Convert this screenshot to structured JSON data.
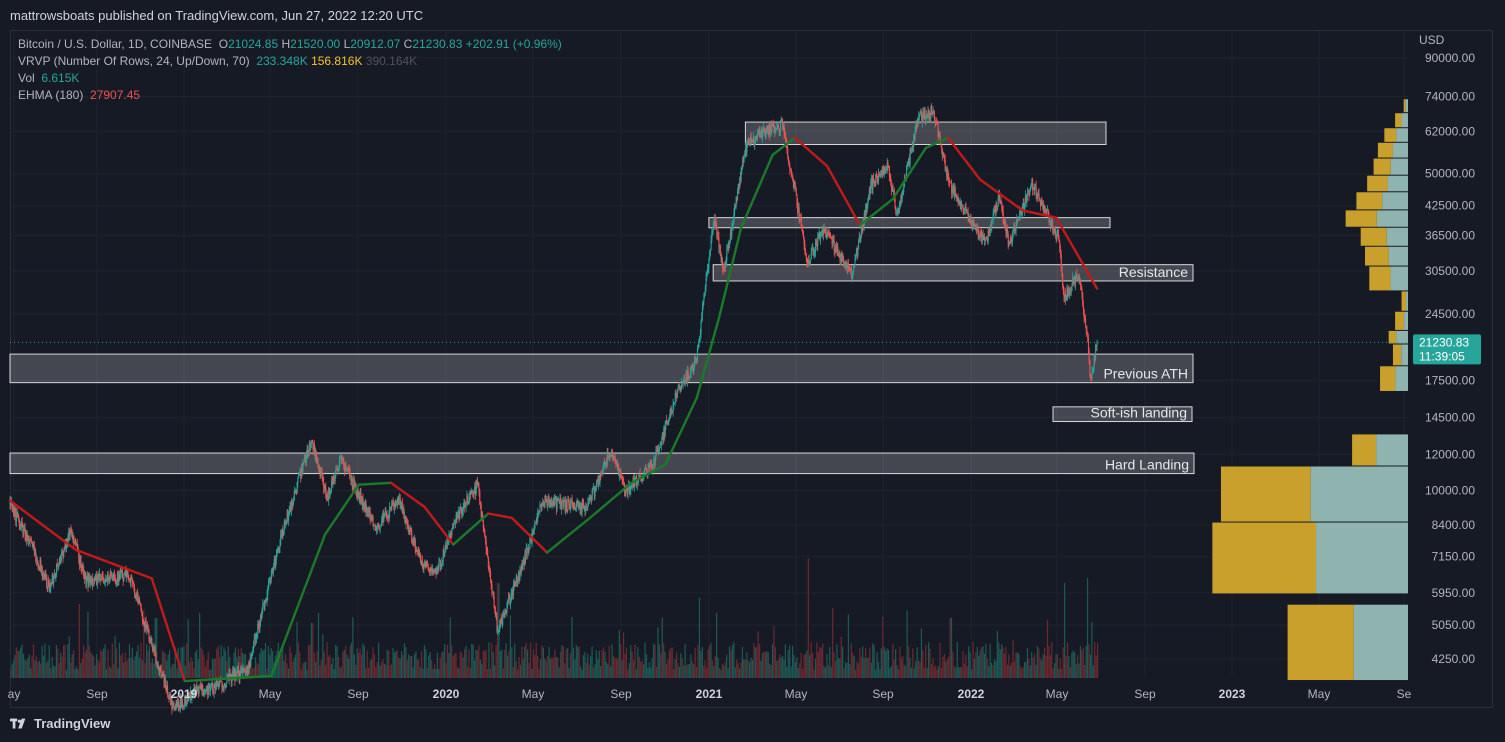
{
  "publisher": "mattrowsboats published on TradingView.com, Jun 27, 2022 12:20 UTC",
  "footer": {
    "brand": "TradingView",
    "icon": "tradingview-logo-icon"
  },
  "legend": {
    "symbol": "Bitcoin / U.S. Dollar, 1D, COINBASE",
    "o_label": "O",
    "o": "21024.85",
    "h_label": "H",
    "h": "21520.00",
    "l_label": "L",
    "l": "20912.07",
    "c_label": "C",
    "c": "21230.83",
    "change": "+202.91 (+0.96%)",
    "vrvp_label": "VRVP (Number Of Rows, 24, Up/Down, 70)",
    "vrvp_up": "233.348K",
    "vrvp_down": "156.816K",
    "vrvp_total": "390.164K",
    "vol_label": "Vol",
    "vol_value": "6.615K",
    "ehma_label": "EHMA (180)",
    "ehma_value": "27907.45"
  },
  "price_tag": {
    "price": "21230.83",
    "countdown": "11:39:05"
  },
  "colors": {
    "background": "#161a25",
    "up": "#26a69a",
    "down": "#ef5350",
    "ehma_up": "#1b7a2a",
    "ehma_down": "#c21a1a",
    "vp_up": "#c9a02c",
    "vp_down": "#8fb4b0",
    "zone": "#ffffff"
  },
  "chart_data": {
    "type": "candlestick",
    "symbol": "BTCUSD",
    "exchange": "COINBASE",
    "interval": "1D",
    "scale": "log",
    "currency": "USD",
    "ylabel": "USD",
    "y_ticks": [
      "90000.00",
      "74000.00",
      "62000.00",
      "50000.00",
      "42500.00",
      "36500.00",
      "30500.00",
      "24500.00",
      "17500.00",
      "14500.00",
      "12000.00",
      "10000.00",
      "8400.00",
      "7150.00",
      "5950.00",
      "5050.00",
      "4250.00"
    ],
    "x_ticks": [
      {
        "label": "ay",
        "bold": false
      },
      {
        "label": "Sep",
        "bold": false
      },
      {
        "label": "2019",
        "bold": true
      },
      {
        "label": "May",
        "bold": false
      },
      {
        "label": "Sep",
        "bold": false
      },
      {
        "label": "2020",
        "bold": true
      },
      {
        "label": "May",
        "bold": false
      },
      {
        "label": "Sep",
        "bold": false
      },
      {
        "label": "2021",
        "bold": true
      },
      {
        "label": "May",
        "bold": false
      },
      {
        "label": "Sep",
        "bold": false
      },
      {
        "label": "2022",
        "bold": true
      },
      {
        "label": "May",
        "bold": false
      },
      {
        "label": "Sep",
        "bold": false
      },
      {
        "label": "2023",
        "bold": true
      },
      {
        "label": "May",
        "bold": false
      },
      {
        "label": "Se",
        "bold": false
      }
    ],
    "price_path": [
      [
        "2018-05-01",
        9300
      ],
      [
        "2018-06-01",
        7500
      ],
      [
        "2018-06-25",
        6100
      ],
      [
        "2018-07-25",
        8200
      ],
      [
        "2018-08-15",
        6300
      ],
      [
        "2018-09-10",
        6400
      ],
      [
        "2018-10-15",
        6500
      ],
      [
        "2018-11-20",
        4300
      ],
      [
        "2018-12-15",
        3300
      ],
      [
        "2019-01-15",
        3600
      ],
      [
        "2019-02-15",
        3700
      ],
      [
        "2019-03-31",
        4100
      ],
      [
        "2019-04-15",
        5200
      ],
      [
        "2019-05-15",
        7900
      ],
      [
        "2019-06-26",
        13000
      ],
      [
        "2019-07-17",
        9600
      ],
      [
        "2019-08-06",
        11800
      ],
      [
        "2019-09-01",
        9700
      ],
      [
        "2019-09-25",
        8300
      ],
      [
        "2019-10-26",
        9500
      ],
      [
        "2019-11-25",
        7000
      ],
      [
        "2019-12-18",
        6600
      ],
      [
        "2020-01-15",
        8700
      ],
      [
        "2020-02-13",
        10300
      ],
      [
        "2020-03-12",
        4900
      ],
      [
        "2020-04-15",
        6800
      ],
      [
        "2020-05-15",
        9500
      ],
      [
        "2020-06-15",
        9300
      ],
      [
        "2020-07-15",
        9200
      ],
      [
        "2020-08-17",
        12300
      ],
      [
        "2020-09-07",
        10000
      ],
      [
        "2020-10-15",
        11400
      ],
      [
        "2020-11-15",
        16000
      ],
      [
        "2020-12-15",
        19500
      ],
      [
        "2021-01-08",
        40000
      ],
      [
        "2021-01-22",
        30500
      ],
      [
        "2021-02-21",
        57000
      ],
      [
        "2021-03-13",
        61500
      ],
      [
        "2021-04-14",
        64000
      ],
      [
        "2021-05-19",
        32000
      ],
      [
        "2021-06-10",
        38000
      ],
      [
        "2021-07-20",
        29800
      ],
      [
        "2021-08-15",
        47000
      ],
      [
        "2021-09-07",
        52500
      ],
      [
        "2021-09-21",
        40600
      ],
      [
        "2021-10-20",
        66000
      ],
      [
        "2021-11-10",
        68800
      ],
      [
        "2021-12-04",
        47000
      ],
      [
        "2022-01-22",
        35000
      ],
      [
        "2022-02-10",
        44500
      ],
      [
        "2022-02-24",
        35000
      ],
      [
        "2022-03-28",
        47500
      ],
      [
        "2022-05-05",
        36000
      ],
      [
        "2022-05-12",
        26700
      ],
      [
        "2022-06-01",
        30000
      ],
      [
        "2022-06-13",
        22500
      ],
      [
        "2022-06-18",
        17600
      ],
      [
        "2022-06-27",
        21230
      ]
    ],
    "ehma_180_path": [
      [
        "2018-05-01",
        9500
      ],
      [
        "2018-08-01",
        7400
      ],
      [
        "2018-11-15",
        6400
      ],
      [
        "2018-12-31",
        3800
      ],
      [
        "2019-05-01",
        3900
      ],
      [
        "2019-07-15",
        8000
      ],
      [
        "2019-08-31",
        10300
      ],
      [
        "2019-10-15",
        10400
      ],
      [
        "2019-12-01",
        9200
      ],
      [
        "2020-01-10",
        7600
      ],
      [
        "2020-02-28",
        8900
      ],
      [
        "2020-04-01",
        8700
      ],
      [
        "2020-05-20",
        7300
      ],
      [
        "2020-07-15",
        8600
      ],
      [
        "2020-09-15",
        10400
      ],
      [
        "2020-11-01",
        11400
      ],
      [
        "2020-12-15",
        16000
      ],
      [
        "2021-01-15",
        24000
      ],
      [
        "2021-02-15",
        38000
      ],
      [
        "2021-03-31",
        55000
      ],
      [
        "2021-05-01",
        60000
      ],
      [
        "2021-06-15",
        52000
      ],
      [
        "2021-07-31",
        38500
      ],
      [
        "2021-09-15",
        44000
      ],
      [
        "2021-10-31",
        57000
      ],
      [
        "2021-12-01",
        60000
      ],
      [
        "2022-01-15",
        48500
      ],
      [
        "2022-03-15",
        41500
      ],
      [
        "2022-05-01",
        40000
      ],
      [
        "2022-06-27",
        27907.45
      ]
    ],
    "zones": [
      {
        "label": "",
        "from": "2021-02-21",
        "to": "2022-06-27",
        "low": 58000,
        "high": 65000
      },
      {
        "label": "",
        "from": "2021-01-01",
        "to": "2022-06-27",
        "low": 38000,
        "high": 40000
      },
      {
        "label": "Resistance",
        "from": "2021-01-07",
        "to": "2022-06-27",
        "low": 29000,
        "high": 31500
      },
      {
        "label": "Previous ATH",
        "from": "2018-05-01",
        "to": "2022-06-27",
        "low": 17300,
        "high": 20000
      },
      {
        "label": "Soft-ish landing",
        "from": "2022-02-15",
        "to": "2022-06-27",
        "low": 14200,
        "high": 15300
      },
      {
        "label": "Hard Landing",
        "from": "2018-05-01",
        "to": "2022-06-27",
        "low": 10900,
        "high": 12100
      }
    ],
    "volume_profile": [
      {
        "low": 3800,
        "high": 5600,
        "up": 0.55,
        "down": 0.45,
        "total": 0.56
      },
      {
        "low": 5900,
        "high": 8500,
        "up": 0.53,
        "down": 0.47,
        "total": 0.91
      },
      {
        "low": 8500,
        "high": 11300,
        "up": 0.48,
        "down": 0.52,
        "total": 0.87
      },
      {
        "low": 11300,
        "high": 13300,
        "up": 0.43,
        "down": 0.57,
        "total": 0.26
      },
      {
        "low": 16500,
        "high": 18800,
        "up": 0.55,
        "down": 0.45,
        "total": 0.13
      },
      {
        "low": 18800,
        "high": 21000,
        "up": 0.55,
        "down": 0.45,
        "total": 0.07
      },
      {
        "low": 21000,
        "high": 22500,
        "up": 0.4,
        "down": 0.6,
        "total": 0.09
      },
      {
        "low": 22500,
        "high": 24800,
        "up": 0.7,
        "down": 0.3,
        "total": 0.06
      },
      {
        "low": 24800,
        "high": 27500,
        "up": 0.7,
        "down": 0.3,
        "total": 0.03
      },
      {
        "low": 27500,
        "high": 31200,
        "up": 0.55,
        "down": 0.45,
        "total": 0.18
      },
      {
        "low": 31200,
        "high": 34500,
        "up": 0.55,
        "down": 0.45,
        "total": 0.2
      },
      {
        "low": 34500,
        "high": 38000,
        "up": 0.55,
        "down": 0.45,
        "total": 0.22
      },
      {
        "low": 38000,
        "high": 41500,
        "up": 0.5,
        "down": 0.5,
        "total": 0.29
      },
      {
        "low": 41500,
        "high": 45500,
        "up": 0.5,
        "down": 0.5,
        "total": 0.24
      },
      {
        "low": 45500,
        "high": 49500,
        "up": 0.5,
        "down": 0.5,
        "total": 0.19
      },
      {
        "low": 49500,
        "high": 54000,
        "up": 0.5,
        "down": 0.5,
        "total": 0.16
      },
      {
        "low": 54000,
        "high": 58500,
        "up": 0.5,
        "down": 0.5,
        "total": 0.14
      },
      {
        "low": 58500,
        "high": 63000,
        "up": 0.5,
        "down": 0.5,
        "total": 0.11
      },
      {
        "low": 63000,
        "high": 68000,
        "up": 0.5,
        "down": 0.5,
        "total": 0.06
      },
      {
        "low": 68000,
        "high": 73000,
        "up": 0.5,
        "down": 0.5,
        "total": 0.02
      }
    ]
  }
}
